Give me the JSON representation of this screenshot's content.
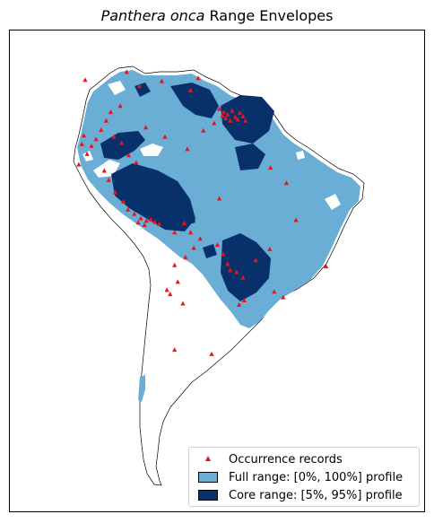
{
  "title": {
    "italic": "Panthera onca",
    "rest": " Range Envelopes"
  },
  "colors": {
    "full_range": "#6aaed6",
    "core_range": "#08306b",
    "occurrence": "#e8141a",
    "land": "#ffffff",
    "coast": "#000000"
  },
  "legend": {
    "items": [
      {
        "label": "Occurrence records",
        "symbol": "triangle"
      },
      {
        "label": "Full range: [0%, 100%] profile",
        "symbol": "full-swatch"
      },
      {
        "label": "Core range: [5%, 95%] profile",
        "symbol": "core-swatch"
      }
    ]
  },
  "chart_data": {
    "type": "map",
    "region": "South America",
    "layers": [
      "coastline",
      "full range envelope",
      "core range envelope",
      "occurrence records"
    ],
    "occurrence_lonlat": [
      [
        -78.5,
        10.2
      ],
      [
        -72.0,
        11.5
      ],
      [
        -70.0,
        9.2
      ],
      [
        -66.5,
        10.0
      ],
      [
        -62.0,
        8.5
      ],
      [
        -57.5,
        5.5
      ],
      [
        -56.8,
        5.0
      ],
      [
        -56.2,
        4.6
      ],
      [
        -55.5,
        5.2
      ],
      [
        -55.0,
        4.2
      ],
      [
        -54.6,
        3.8
      ],
      [
        -55.8,
        3.6
      ],
      [
        -56.5,
        4.0
      ],
      [
        -57.0,
        4.4
      ],
      [
        -54.3,
        4.9
      ],
      [
        -53.8,
        4.3
      ],
      [
        -53.4,
        3.6
      ],
      [
        -58.3,
        3.2
      ],
      [
        -60.0,
        2.0
      ],
      [
        -66.0,
        1.0
      ],
      [
        -62.5,
        -1.0
      ],
      [
        -73.0,
        6.0
      ],
      [
        -74.5,
        5.0
      ],
      [
        -75.2,
        3.6
      ],
      [
        -76.0,
        2.1
      ],
      [
        -76.8,
        0.6
      ],
      [
        -77.5,
        -0.5
      ],
      [
        -78.2,
        -1.8
      ],
      [
        -79.0,
        -0.2
      ],
      [
        -78.7,
        1.2
      ],
      [
        -74.0,
        1.0
      ],
      [
        -72.8,
        0.0
      ],
      [
        -71.7,
        -2.0
      ],
      [
        -70.5,
        -3.2
      ],
      [
        -75.5,
        -4.5
      ],
      [
        -74.8,
        -6.0
      ],
      [
        -73.8,
        -8.0
      ],
      [
        -72.5,
        -9.5
      ],
      [
        -71.8,
        -10.8
      ],
      [
        -70.8,
        -11.5
      ],
      [
        -69.8,
        -12.2
      ],
      [
        -68.9,
        -12.6
      ],
      [
        -68.2,
        -12.4
      ],
      [
        -67.6,
        -12.8
      ],
      [
        -66.9,
        -13.1
      ],
      [
        -69.2,
        -13.3
      ],
      [
        -70.2,
        -12.9
      ],
      [
        -64.5,
        -14.5
      ],
      [
        -63.0,
        -13.0
      ],
      [
        -62.0,
        -14.5
      ],
      [
        -60.5,
        -15.5
      ],
      [
        -61.5,
        -17.0
      ],
      [
        -62.8,
        -18.5
      ],
      [
        -64.5,
        -19.8
      ],
      [
        -57.8,
        -16.5
      ],
      [
        -56.9,
        -18.0
      ],
      [
        -56.2,
        -19.6
      ],
      [
        -55.8,
        -20.6
      ],
      [
        -54.8,
        -20.9
      ],
      [
        -53.8,
        -21.8
      ],
      [
        -51.8,
        -19.0
      ],
      [
        -49.6,
        -17.2
      ],
      [
        -48.9,
        -24.1
      ],
      [
        -47.5,
        -25.0
      ],
      [
        -53.6,
        -25.5
      ],
      [
        -54.4,
        -26.2
      ],
      [
        -45.5,
        -12.5
      ],
      [
        -40.8,
        -20.0
      ],
      [
        -64.0,
        -22.5
      ],
      [
        -65.2,
        -24.5
      ],
      [
        -65.7,
        -23.8
      ],
      [
        -63.2,
        -26.0
      ],
      [
        -58.7,
        -34.2
      ],
      [
        -64.5,
        -33.5
      ],
      [
        -57.5,
        -9.0
      ],
      [
        -49.5,
        -4.0
      ],
      [
        -47.0,
        -6.5
      ],
      [
        -60.8,
        10.5
      ],
      [
        -69.0,
        2.5
      ],
      [
        -79.5,
        -3.5
      ]
    ]
  }
}
